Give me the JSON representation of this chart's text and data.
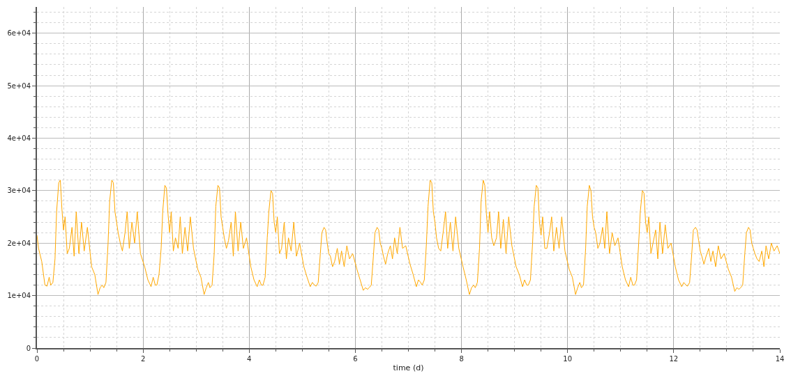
{
  "chart_data": {
    "type": "line",
    "xlabel": "time (d)",
    "xlim": [
      0,
      14
    ],
    "ylim": [
      0,
      65000
    ],
    "xticks": [
      0,
      {
        "value": 0.5,
        "label": null
      },
      {
        "value": 1,
        "label": null
      },
      {
        "value": 1.5,
        "label": null
      },
      2,
      {
        "value": 2.5,
        "label": null
      },
      {
        "value": 3,
        "label": null
      },
      {
        "value": 3.5,
        "label": null
      },
      4,
      {
        "value": 4.5,
        "label": null
      },
      {
        "value": 5,
        "label": null
      },
      {
        "value": 5.5,
        "label": null
      },
      6,
      {
        "value": 6.5,
        "label": null
      },
      {
        "value": 7,
        "label": null
      },
      {
        "value": 7.5,
        "label": null
      },
      8,
      {
        "value": 8.5,
        "label": null
      },
      {
        "value": 9,
        "label": null
      },
      {
        "value": 9.5,
        "label": null
      },
      10,
      {
        "value": 10.5,
        "label": null
      },
      {
        "value": 11,
        "label": null
      },
      {
        "value": 11.5,
        "label": null
      },
      12,
      {
        "value": 12.5,
        "label": null
      },
      {
        "value": 13,
        "label": null
      },
      {
        "value": 13.5,
        "label": null
      },
      14
    ],
    "yticks": [
      0,
      {
        "value": 2000,
        "label": null
      },
      {
        "value": 4000,
        "label": null
      },
      {
        "value": 6000,
        "label": null
      },
      {
        "value": 8000,
        "label": null
      },
      {
        "value": 10000,
        "label": "1e+04"
      },
      {
        "value": 12000,
        "label": null
      },
      {
        "value": 14000,
        "label": null
      },
      {
        "value": 16000,
        "label": null
      },
      {
        "value": 18000,
        "label": null
      },
      {
        "value": 20000,
        "label": "2e+04"
      },
      {
        "value": 22000,
        "label": null
      },
      {
        "value": 24000,
        "label": null
      },
      {
        "value": 26000,
        "label": null
      },
      {
        "value": 28000,
        "label": null
      },
      {
        "value": 30000,
        "label": "3e+04"
      },
      {
        "value": 32000,
        "label": null
      },
      {
        "value": 34000,
        "label": null
      },
      {
        "value": 36000,
        "label": null
      },
      {
        "value": 38000,
        "label": null
      },
      {
        "value": 40000,
        "label": "4e+04"
      },
      {
        "value": 42000,
        "label": null
      },
      {
        "value": 44000,
        "label": null
      },
      {
        "value": 46000,
        "label": null
      },
      {
        "value": 48000,
        "label": null
      },
      {
        "value": 50000,
        "label": "5e+04"
      },
      {
        "value": 52000,
        "label": null
      },
      {
        "value": 54000,
        "label": null
      },
      {
        "value": 56000,
        "label": null
      },
      {
        "value": 58000,
        "label": null
      },
      {
        "value": 60000,
        "label": "6e+04"
      },
      {
        "value": 62000,
        "label": null
      },
      {
        "value": 64000,
        "label": null
      }
    ],
    "grid": true,
    "marker": "none",
    "line_style": "solid",
    "series": [
      {
        "color": "#ffa800",
        "x": [
          0,
          0.03,
          0.09,
          0.15,
          0.19,
          0.23,
          0.26,
          0.3,
          0.34,
          0.37,
          0.41,
          0.44,
          0.47,
          0.5,
          0.53,
          0.57,
          0.61,
          0.66,
          0.7,
          0.74,
          0.79,
          0.84,
          0.89,
          0.95,
          1.03,
          1.09,
          1.15,
          1.19,
          1.23,
          1.26,
          1.3,
          1.34,
          1.37,
          1.41,
          1.44,
          1.47,
          1.5,
          1.53,
          1.57,
          1.61,
          1.66,
          1.7,
          1.74,
          1.79,
          1.84,
          1.89,
          1.95,
          2.03,
          2.09,
          2.15,
          2.19,
          2.23,
          2.26,
          2.3,
          2.34,
          2.37,
          2.41,
          2.44,
          2.47,
          2.5,
          2.53,
          2.57,
          2.61,
          2.66,
          2.7,
          2.74,
          2.79,
          2.84,
          2.89,
          2.95,
          3.03,
          3.09,
          3.15,
          3.19,
          3.23,
          3.26,
          3.3,
          3.34,
          3.37,
          3.41,
          3.44,
          3.47,
          3.5,
          3.53,
          3.57,
          3.61,
          3.66,
          3.7,
          3.74,
          3.79,
          3.84,
          3.89,
          3.95,
          4.03,
          4.09,
          4.15,
          4.19,
          4.23,
          4.26,
          4.3,
          4.34,
          4.37,
          4.41,
          4.44,
          4.47,
          4.5,
          4.53,
          4.57,
          4.61,
          4.66,
          4.7,
          4.74,
          4.79,
          4.84,
          4.89,
          4.95,
          5.03,
          5.09,
          5.15,
          5.19,
          5.23,
          5.26,
          5.3,
          5.34,
          5.37,
          5.41,
          5.44,
          5.47,
          5.5,
          5.53,
          5.57,
          5.61,
          5.66,
          5.7,
          5.74,
          5.79,
          5.84,
          5.89,
          5.95,
          6.03,
          6.09,
          6.15,
          6.19,
          6.23,
          6.26,
          6.3,
          6.34,
          6.37,
          6.41,
          6.44,
          6.47,
          6.5,
          6.53,
          6.57,
          6.61,
          6.66,
          6.7,
          6.74,
          6.79,
          6.84,
          6.89,
          6.95,
          7.03,
          7.09,
          7.15,
          7.19,
          7.23,
          7.26,
          7.3,
          7.34,
          7.37,
          7.41,
          7.44,
          7.47,
          7.5,
          7.53,
          7.57,
          7.61,
          7.66,
          7.7,
          7.74,
          7.79,
          7.84,
          7.89,
          7.95,
          8.03,
          8.09,
          8.15,
          8.19,
          8.23,
          8.26,
          8.3,
          8.34,
          8.37,
          8.41,
          8.44,
          8.47,
          8.5,
          8.53,
          8.57,
          8.61,
          8.66,
          8.7,
          8.74,
          8.79,
          8.84,
          8.89,
          8.95,
          9.03,
          9.09,
          9.15,
          9.19,
          9.23,
          9.26,
          9.3,
          9.34,
          9.37,
          9.41,
          9.44,
          9.47,
          9.5,
          9.53,
          9.57,
          9.61,
          9.66,
          9.7,
          9.74,
          9.79,
          9.84,
          9.89,
          9.95,
          10.03,
          10.09,
          10.15,
          10.19,
          10.23,
          10.26,
          10.3,
          10.34,
          10.37,
          10.41,
          10.44,
          10.47,
          10.5,
          10.53,
          10.57,
          10.61,
          10.66,
          10.7,
          10.74,
          10.79,
          10.84,
          10.89,
          10.95,
          11.03,
          11.09,
          11.15,
          11.19,
          11.23,
          11.26,
          11.3,
          11.34,
          11.37,
          11.41,
          11.44,
          11.47,
          11.5,
          11.53,
          11.57,
          11.61,
          11.66,
          11.7,
          11.74,
          11.79,
          11.84,
          11.89,
          11.95,
          12.03,
          12.09,
          12.15,
          12.19,
          12.23,
          12.26,
          12.3,
          12.34,
          12.37,
          12.41,
          12.44,
          12.47,
          12.5,
          12.53,
          12.57,
          12.61,
          12.66,
          12.7,
          12.74,
          12.79,
          12.84,
          12.89,
          12.95,
          13.03,
          13.09,
          13.15,
          13.19,
          13.23,
          13.26,
          13.3,
          13.34,
          13.37,
          13.41,
          13.44,
          13.47,
          13.5,
          13.53,
          13.57,
          13.61,
          13.66,
          13.7,
          13.74,
          13.79,
          13.84,
          13.89,
          13.95,
          14
        ],
        "values": [
          21500,
          19000,
          16500,
          12000,
          11800,
          13500,
          12000,
          12500,
          17000,
          26000,
          31500,
          32000,
          26500,
          22500,
          25000,
          18000,
          19000,
          23000,
          17500,
          26000,
          18000,
          24000,
          18500,
          23000,
          15500,
          14000,
          10200,
          11500,
          12000,
          11500,
          12500,
          20000,
          28000,
          32000,
          31500,
          26000,
          24000,
          22000,
          20000,
          18500,
          22000,
          26000,
          19000,
          24000,
          20000,
          26000,
          18000,
          15500,
          13000,
          11700,
          13500,
          12000,
          12000,
          14000,
          19000,
          26000,
          31000,
          30500,
          25500,
          22000,
          26000,
          18500,
          21000,
          19000,
          25000,
          18000,
          23000,
          18500,
          25000,
          19000,
          15000,
          13500,
          10200,
          11500,
          12500,
          11500,
          12000,
          18000,
          27000,
          31000,
          30500,
          25000,
          23000,
          21000,
          19000,
          20500,
          24000,
          17500,
          26000,
          18500,
          24000,
          19000,
          21000,
          15500,
          13000,
          11700,
          13000,
          12000,
          12000,
          13500,
          21000,
          26000,
          30000,
          29500,
          24000,
          22000,
          25000,
          18000,
          19000,
          24000,
          17000,
          21000,
          18500,
          24000,
          17500,
          20000,
          15500,
          13500,
          11700,
          12500,
          12000,
          11800,
          12500,
          18000,
          22000,
          23000,
          22500,
          20000,
          18000,
          17500,
          15500,
          16500,
          19000,
          16000,
          18500,
          15500,
          19500,
          17000,
          18000,
          15000,
          13000,
          11000,
          11500,
          11200,
          11500,
          12000,
          17500,
          22000,
          23000,
          22500,
          20000,
          19000,
          17500,
          16000,
          18000,
          19500,
          17000,
          21000,
          18000,
          23000,
          19000,
          19500,
          16000,
          14000,
          11700,
          13000,
          12500,
          12000,
          13000,
          20000,
          27000,
          32000,
          31500,
          26000,
          24000,
          21000,
          19000,
          18500,
          22500,
          26000,
          19000,
          24000,
          18500,
          25000,
          19000,
          15500,
          13000,
          10200,
          11500,
          12000,
          11500,
          12500,
          19000,
          28000,
          32000,
          31000,
          25500,
          22000,
          26000,
          21000,
          19500,
          21000,
          26000,
          19000,
          24500,
          18000,
          25000,
          19500,
          15500,
          14000,
          11700,
          13000,
          12000,
          12000,
          13000,
          20000,
          27000,
          31000,
          30500,
          24000,
          21500,
          25000,
          19000,
          19000,
          22000,
          25000,
          18500,
          23000,
          19000,
          25000,
          18500,
          15000,
          13500,
          10200,
          11500,
          12500,
          11500,
          12000,
          19000,
          27000,
          31000,
          30000,
          25000,
          23000,
          22000,
          19000,
          20000,
          23000,
          19000,
          26000,
          18000,
          22000,
          19500,
          21000,
          15500,
          13000,
          11700,
          13500,
          12000,
          12000,
          13000,
          20000,
          26000,
          30000,
          29500,
          24000,
          22000,
          25000,
          18000,
          20000,
          22500,
          17000,
          24000,
          18000,
          23500,
          19000,
          20000,
          15500,
          13000,
          11700,
          12500,
          12000,
          11800,
          12500,
          18000,
          22500,
          23000,
          22500,
          20500,
          18500,
          17500,
          16000,
          17500,
          19000,
          16500,
          18500,
          15500,
          19500,
          17000,
          18000,
          15000,
          13500,
          10800,
          11500,
          11200,
          11500,
          12000,
          18000,
          22000,
          23000,
          22500,
          20000,
          19000,
          18000,
          17000,
          16500,
          18500,
          15500,
          19500,
          17000,
          20000,
          18500,
          19500,
          18000
        ]
      }
    ]
  }
}
